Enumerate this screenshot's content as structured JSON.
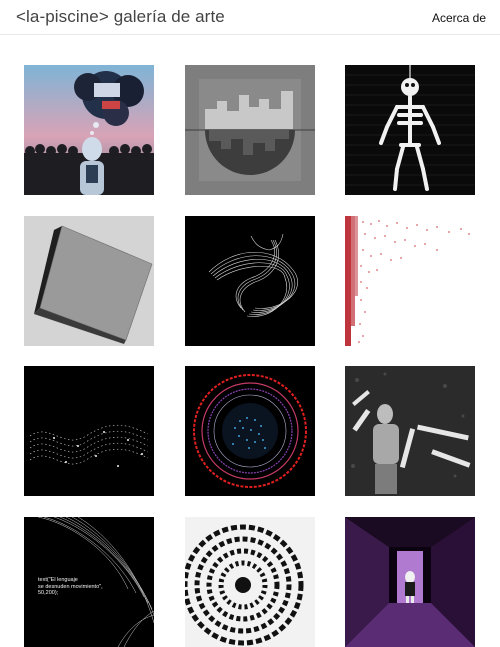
{
  "header": {
    "site_title": "<la-piscine> galería de arte",
    "about_link": "Acerca de"
  },
  "gallery": {
    "artworks": [
      {
        "icon": "surreal-collage-artwork"
      },
      {
        "icon": "city-skyline-artwork"
      },
      {
        "icon": "skeleton-artwork"
      },
      {
        "icon": "gray-cube-artwork"
      },
      {
        "icon": "ribbon-curves-artwork"
      },
      {
        "icon": "red-particles-artwork"
      },
      {
        "icon": "white-waves-artwork"
      },
      {
        "icon": "circle-rings-artwork"
      },
      {
        "icon": "figure-text-artwork"
      },
      {
        "icon": "text-lines-artwork",
        "text": "text(\"El lenguaje\nse desnuden movimiento\",\n50,200);"
      },
      {
        "icon": "spiral-artwork"
      },
      {
        "icon": "purple-corridor-artwork"
      }
    ]
  },
  "colors": {
    "background": "#ffffff",
    "header_border": "#e8e8e8",
    "ring_red": "#e0201f",
    "accent_purple": "#8a44b4"
  }
}
